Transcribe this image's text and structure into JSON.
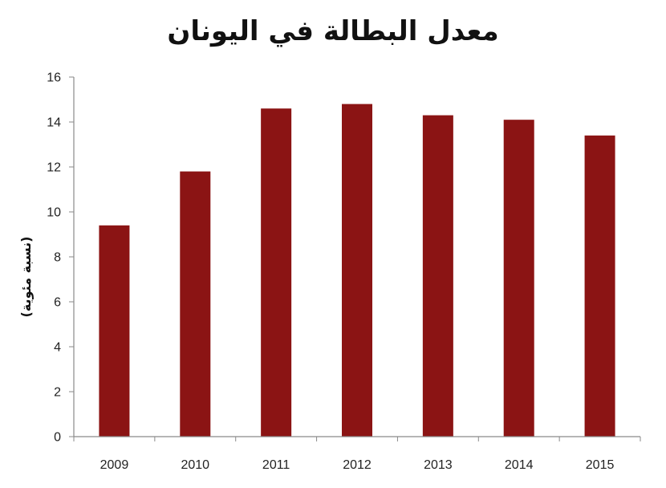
{
  "chart_data": {
    "type": "bar",
    "title": "معدل البطالة في اليونان",
    "xlabel": "",
    "ylabel": "(نسبة مئوية)",
    "categories": [
      "2009",
      "2010",
      "2011",
      "2012",
      "2013",
      "2014",
      "2015"
    ],
    "values": [
      9.4,
      11.8,
      14.6,
      14.8,
      14.3,
      14.1,
      13.4
    ],
    "ylim": [
      0,
      16
    ],
    "yticks": [
      0,
      2,
      4,
      6,
      8,
      10,
      12,
      14,
      16
    ],
    "grid": false,
    "legend": "none",
    "bar_color": "#8b1414",
    "axis_color": "#8a8a8a"
  }
}
